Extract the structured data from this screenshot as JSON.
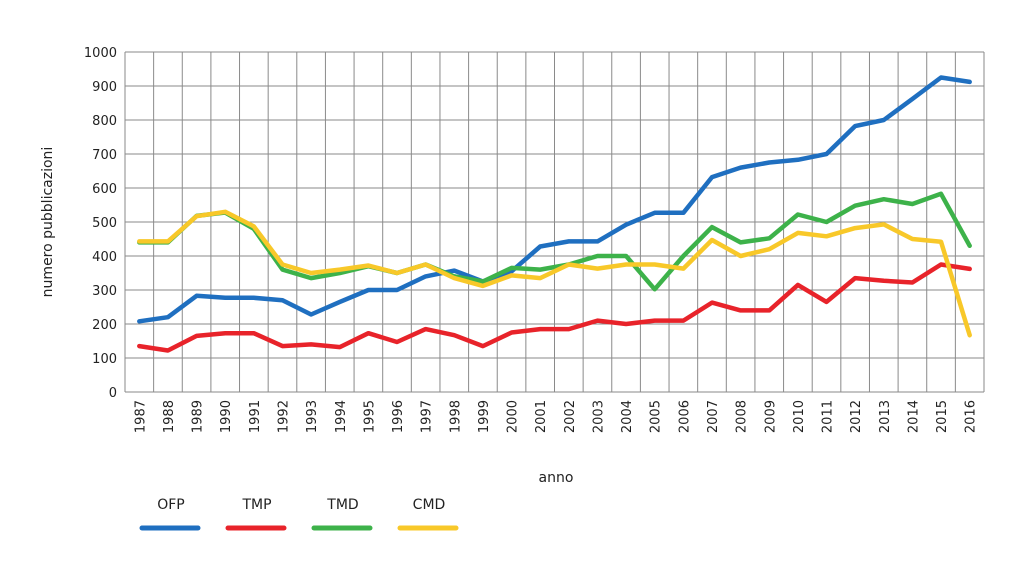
{
  "chart_data": {
    "type": "line",
    "title": "",
    "xlabel": "anno",
    "ylabel": "numero pubblicazioni",
    "ylim": [
      0,
      1000
    ],
    "yticks": [
      "0",
      "100",
      "200",
      "300",
      "400",
      "500",
      "600",
      "700",
      "800",
      "900",
      "1000"
    ],
    "grid": true,
    "legend_position": "bottom-left",
    "x": [
      "1987",
      "1988",
      "1989",
      "1990",
      "1991",
      "1992",
      "1993",
      "1994",
      "1995",
      "1996",
      "1997",
      "1998",
      "1999",
      "2000",
      "2001",
      "2002",
      "2003",
      "2004",
      "2005",
      "2006",
      "2007",
      "2008",
      "2009",
      "2010",
      "2011",
      "2012",
      "2013",
      "2014",
      "2015",
      "2016"
    ],
    "series": [
      {
        "name": "OFP",
        "color": "#1f6fc0",
        "values": [
          208,
          220,
          283,
          277,
          277,
          270,
          228,
          265,
          300,
          300,
          340,
          357,
          325,
          355,
          428,
          443,
          443,
          492,
          527,
          527,
          632,
          660,
          675,
          683,
          700,
          782,
          800,
          862,
          925,
          912
        ]
      },
      {
        "name": "TMP",
        "color": "#e8232a",
        "values": [
          135,
          122,
          165,
          173,
          173,
          135,
          140,
          132,
          173,
          147,
          185,
          167,
          135,
          175,
          185,
          185,
          210,
          200,
          210,
          210,
          263,
          240,
          240,
          315,
          265,
          335,
          327,
          322,
          375,
          362
        ]
      },
      {
        "name": "TMD",
        "color": "#3db24a",
        "values": [
          440,
          440,
          518,
          528,
          480,
          360,
          335,
          350,
          370,
          350,
          375,
          340,
          325,
          365,
          360,
          375,
          400,
          400,
          302,
          400,
          485,
          440,
          452,
          522,
          500,
          548,
          567,
          553,
          583,
          430
        ]
      },
      {
        "name": "CMD",
        "color": "#f8c829",
        "values": [
          443,
          443,
          517,
          530,
          487,
          375,
          350,
          360,
          372,
          350,
          375,
          335,
          312,
          343,
          335,
          375,
          363,
          375,
          375,
          363,
          447,
          400,
          420,
          468,
          458,
          482,
          493,
          450,
          442,
          167
        ]
      }
    ]
  }
}
